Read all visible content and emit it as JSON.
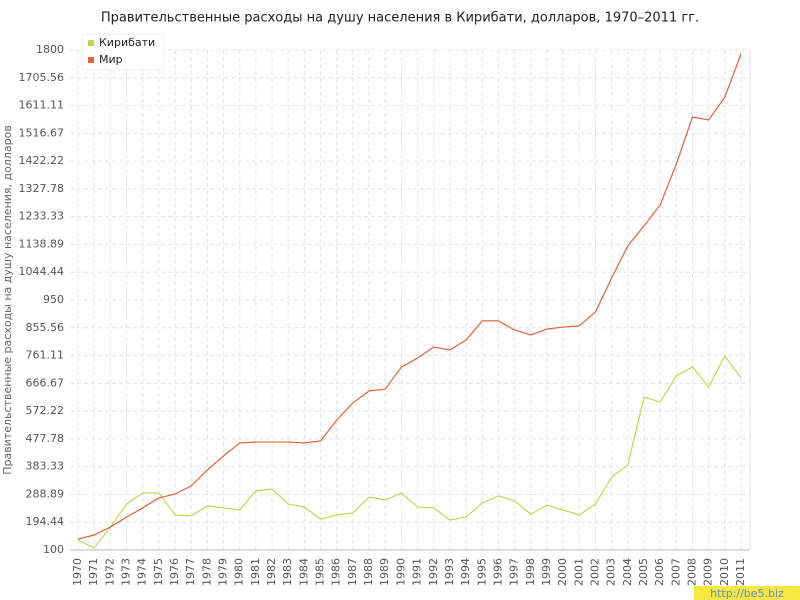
{
  "chart_data": {
    "type": "line",
    "title": "Правительственные расходы на душу населения в Кирибати, долларов, 1970–2011 гг.",
    "y_label": "Правительственные расходы на душу населения, долларов",
    "watermark": "http://be5.biz",
    "categories": [
      "1970",
      "1971",
      "1972",
      "1973",
      "1974",
      "1975",
      "1976",
      "1977",
      "1978",
      "1979",
      "1980",
      "1981",
      "1982",
      "1983",
      "1984",
      "1985",
      "1986",
      "1987",
      "1988",
      "1989",
      "1990",
      "1991",
      "1992",
      "1993",
      "1994",
      "1995",
      "1996",
      "1997",
      "1998",
      "1999",
      "2000",
      "2001",
      "2002",
      "2003",
      "2004",
      "2005",
      "2006",
      "2007",
      "2008",
      "2009",
      "2010",
      "2011"
    ],
    "series": [
      {
        "name": "Кирибати",
        "color": "#bada55",
        "values": [
          134,
          107,
          178,
          256,
          294,
          294,
          219,
          216,
          250,
          243,
          236,
          301,
          307,
          256,
          246,
          205,
          219,
          226,
          280,
          270,
          294,
          246,
          243,
          202,
          212,
          260,
          284,
          267,
          222,
          253,
          236,
          219,
          256,
          348,
          389,
          620,
          603,
          692,
          722,
          654,
          760,
          685
        ]
      },
      {
        "name": "Мир",
        "color": "#e0643a",
        "values": [
          137,
          151,
          178,
          212,
          243,
          277,
          290,
          318,
          372,
          420,
          464,
          467,
          467,
          467,
          464,
          471,
          542,
          600,
          641,
          647,
          722,
          753,
          790,
          780,
          814,
          879,
          879,
          848,
          831,
          851,
          858,
          862,
          909,
          1025,
          1134,
          1202,
          1273,
          1412,
          1572,
          1562,
          1640,
          1786
        ]
      }
    ],
    "ylim": [
      100,
      1800
    ],
    "yticks": [
      100,
      194.44,
      288.89,
      383.33,
      477.78,
      572.22,
      666.67,
      761.11,
      855.56,
      950,
      1044.44,
      1138.89,
      1233.33,
      1327.78,
      1422.22,
      1516.67,
      1611.11,
      1705.56,
      1800
    ],
    "grid": true,
    "legend": "top-left"
  }
}
